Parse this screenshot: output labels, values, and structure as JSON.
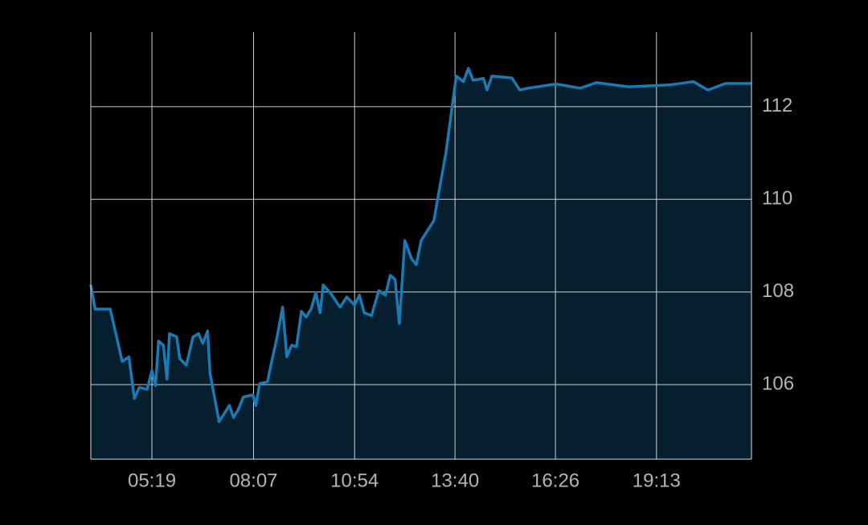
{
  "chart_data": {
    "type": "area",
    "x": [
      "03:38",
      "03:45",
      "04:10",
      "04:30",
      "04:41",
      "04:50",
      "04:58",
      "05:11",
      "05:19",
      "05:25",
      "05:30",
      "05:38",
      "05:44",
      "05:48",
      "06:00",
      "06:05",
      "06:16",
      "06:27",
      "06:36",
      "06:43",
      "06:51",
      "06:55",
      "07:10",
      "07:27",
      "07:34",
      "07:42",
      "07:50",
      "08:06",
      "08:11",
      "08:17",
      "08:30",
      "08:38",
      "08:46",
      "08:55",
      "09:02",
      "09:10",
      "09:18",
      "09:26",
      "09:34",
      "09:42",
      "09:50",
      "09:57",
      "10:02",
      "10:14",
      "10:30",
      "10:41",
      "10:54",
      "11:02",
      "11:10",
      "11:22",
      "11:34",
      "11:45",
      "11:53",
      "12:01",
      "12:08",
      "12:17",
      "12:28",
      "12:36",
      "12:44",
      "13:05",
      "13:25",
      "13:42",
      "13:54",
      "14:02",
      "14:10",
      "14:27",
      "14:33",
      "14:41",
      "15:14",
      "15:27",
      "15:41",
      "16:27",
      "17:07",
      "17:34",
      "18:27",
      "19:34",
      "20:14",
      "20:38",
      "21:07",
      "21:50"
    ],
    "values": [
      108.15,
      107.63,
      107.63,
      106.5,
      106.6,
      105.7,
      105.94,
      105.9,
      106.3,
      105.98,
      106.94,
      106.85,
      106.12,
      107.1,
      107.03,
      106.56,
      106.42,
      107.03,
      107.1,
      106.89,
      107.16,
      106.25,
      105.2,
      105.55,
      105.29,
      105.47,
      105.73,
      105.78,
      105.55,
      106.02,
      106.06,
      106.56,
      107.03,
      107.67,
      106.6,
      106.85,
      106.82,
      107.58,
      107.46,
      107.63,
      107.98,
      107.55,
      108.15,
      107.98,
      107.67,
      107.89,
      107.72,
      107.93,
      107.55,
      107.49,
      108.03,
      107.93,
      108.36,
      108.27,
      107.32,
      109.11,
      108.72,
      108.59,
      109.11,
      109.54,
      111.01,
      112.66,
      112.54,
      112.83,
      112.57,
      112.61,
      112.36,
      112.66,
      112.62,
      112.36,
      112.4,
      112.49,
      112.4,
      112.52,
      112.43,
      112.47,
      112.54,
      112.36,
      112.5,
      112.5
    ],
    "color": "#1a7ab5",
    "fill": "#051f2e",
    "xlim": [
      "03:38",
      "21:50"
    ],
    "xticks": [
      "05:19",
      "08:07",
      "10:54",
      "13:40",
      "16:26",
      "19:13"
    ],
    "ylim": [
      104.39,
      113.61
    ],
    "yticks": [
      106,
      108,
      110,
      112
    ],
    "grid": true
  }
}
